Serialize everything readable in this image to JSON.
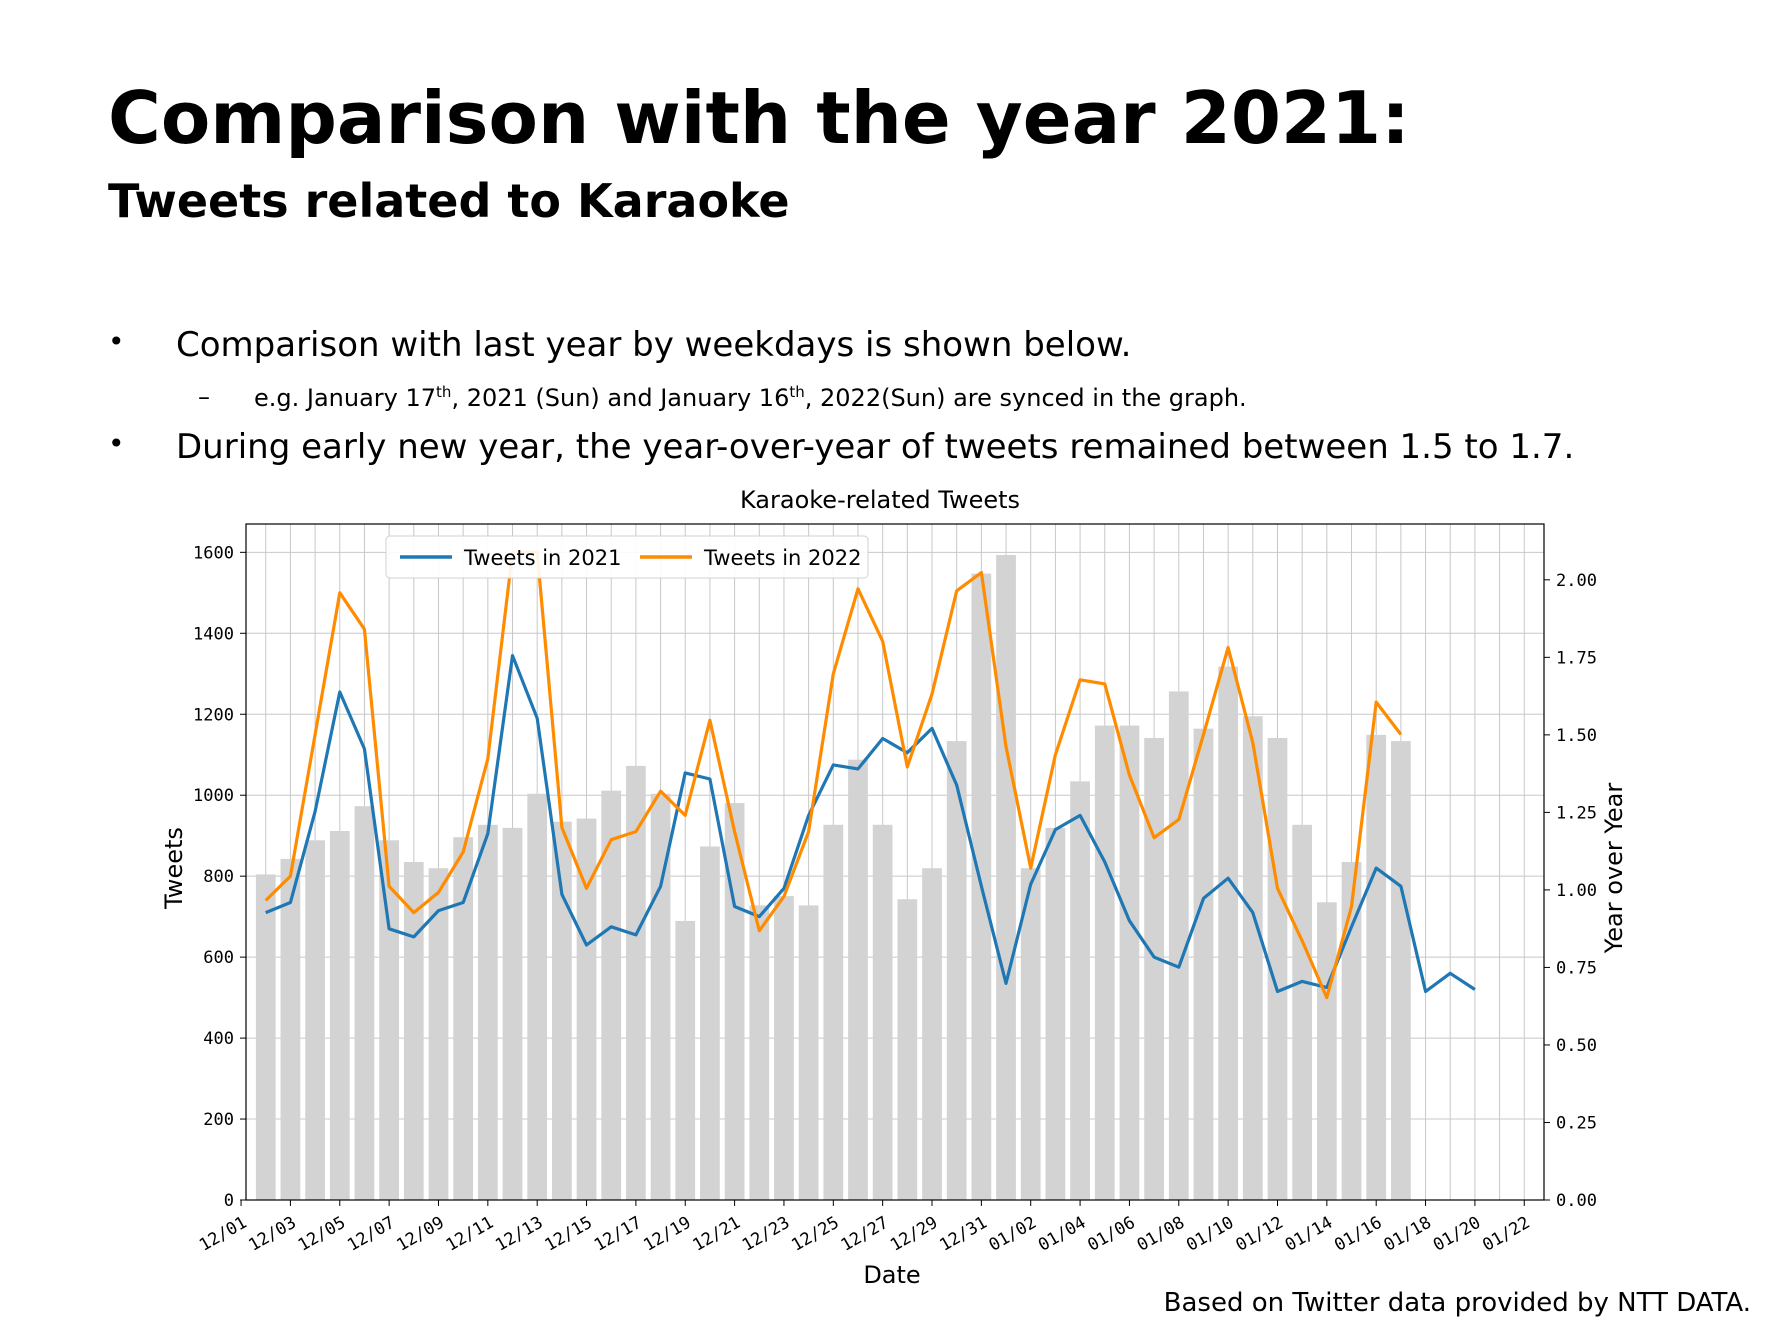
{
  "slide": {
    "title": "Comparison with the year 2021:",
    "subtitle": "Tweets related to Karaoke",
    "bullets": [
      "Comparison with last year by weekdays is shown below.",
      "During early new year, the year-over-year of tweets remained between 1.5 to 1.7."
    ],
    "sub_bullet": {
      "part1": "e.g. January 17",
      "sup1": "th",
      "part2": ", 2021 (Sun) and January 16",
      "sup2": "th",
      "part3": ", 2022(Sun) are synced in the graph."
    },
    "footer": "Based on Twitter data provided by NTT DATA."
  },
  "colors": {
    "series_2021": "#1f77b4",
    "series_2022": "#ff8c00",
    "yoy_bars": "#d3d3d3",
    "grid": "#c8c8c8"
  },
  "chart_data": {
    "type": "bar+line",
    "title": "Karaoke-related Tweets",
    "xlabel": "Date",
    "ylabel": "Tweets",
    "y2label": "Year over Year",
    "ylim": [
      0,
      1670
    ],
    "y2lim": [
      0,
      2.18
    ],
    "yticks": [
      0,
      200,
      400,
      600,
      800,
      1000,
      1200,
      1400,
      1600
    ],
    "y2ticks": [
      "0.00",
      "0.25",
      "0.50",
      "0.75",
      "1.00",
      "1.25",
      "1.50",
      "1.75",
      "2.00"
    ],
    "x_tick_labels": [
      "12/01",
      "12/03",
      "12/05",
      "12/07",
      "12/09",
      "12/11",
      "12/13",
      "12/15",
      "12/17",
      "12/19",
      "12/21",
      "12/23",
      "12/25",
      "12/27",
      "12/29",
      "12/31",
      "01/02",
      "01/04",
      "01/06",
      "01/08",
      "01/10",
      "01/12",
      "01/14",
      "01/16",
      "01/18",
      "01/20",
      "01/22"
    ],
    "x_start_label": "12/01",
    "grid": true,
    "legend": "top-left",
    "series": [
      {
        "name": "Tweets in 2021",
        "axis": "left",
        "kind": "line",
        "start_day": 1,
        "values": [
          710,
          735,
          960,
          1255,
          1115,
          670,
          650,
          715,
          735,
          905,
          1345,
          1190,
          755,
          630,
          675,
          655,
          775,
          1055,
          1040,
          725,
          700,
          770,
          950,
          1075,
          1065,
          1140,
          1105,
          1165,
          1025,
          775,
          535,
          780,
          915,
          950,
          835,
          690,
          600,
          575,
          745,
          795,
          710,
          515,
          540,
          525,
          675,
          820,
          775,
          515,
          560,
          520
        ]
      },
      {
        "name": "Tweets in 2022",
        "axis": "left",
        "kind": "line",
        "start_day": 1,
        "values": [
          740,
          800,
          1150,
          1500,
          1410,
          775,
          710,
          760,
          860,
          1090,
          1600,
          1600,
          920,
          770,
          890,
          910,
          1010,
          950,
          1185,
          910,
          665,
          750,
          910,
          1300,
          1510,
          1380,
          1070,
          1250,
          1505,
          1550,
          1120,
          820,
          1100,
          1285,
          1275,
          1050,
          895,
          940,
          1150,
          1365,
          1130,
          770,
          640,
          500,
          725,
          1230,
          1150
        ]
      },
      {
        "name": "Year over Year",
        "axis": "right",
        "kind": "bar",
        "start_day": 1,
        "values": [
          1.05,
          1.1,
          1.16,
          1.19,
          1.27,
          1.16,
          1.09,
          1.07,
          1.17,
          1.21,
          1.2,
          1.31,
          1.22,
          1.23,
          1.32,
          1.4,
          1.31,
          0.9,
          1.14,
          1.28,
          0.95,
          0.98,
          0.95,
          1.21,
          1.42,
          1.21,
          0.97,
          1.07,
          1.48,
          2.02,
          2.08,
          1.07,
          1.2,
          1.35,
          1.53,
          1.53,
          1.49,
          1.64,
          1.52,
          1.72,
          1.56,
          1.49,
          1.21,
          0.96,
          1.09,
          1.5,
          1.48
        ]
      }
    ]
  }
}
